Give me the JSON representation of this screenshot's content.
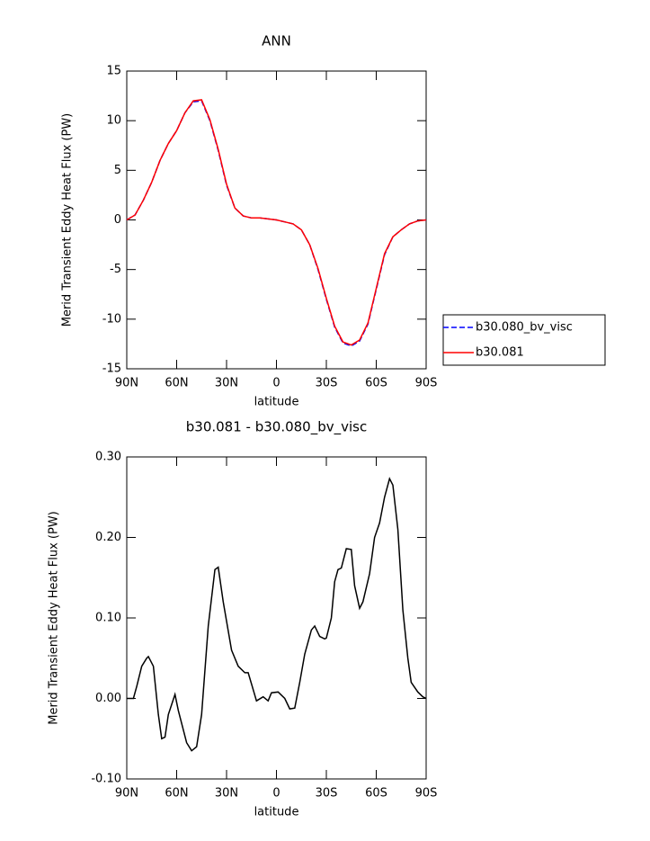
{
  "chart_data": [
    {
      "type": "line",
      "title": "ANN",
      "x_label": "latitude",
      "y_label": "Merid Transient Eddy Heat Flux (PW)",
      "x": [
        90,
        85,
        80,
        75,
        70,
        65,
        60,
        55,
        50,
        45,
        40,
        35,
        30,
        25,
        20,
        15,
        10,
        5,
        0,
        -5,
        -10,
        -15,
        -20,
        -25,
        -30,
        -35,
        -40,
        -45,
        -50,
        -55,
        -60,
        -65,
        -70,
        -75,
        -80,
        -85,
        -90
      ],
      "series": [
        {
          "name": "b30.080_bv_visc",
          "color": "#0000ff",
          "dashed": true,
          "values": [
            0,
            0.5,
            2,
            3.8,
            6,
            7.7,
            9,
            10.8,
            11.9,
            12,
            10,
            7,
            3.5,
            1.2,
            0.4,
            0.2,
            0.2,
            0.1,
            0,
            -0.2,
            -0.4,
            -1,
            -2.5,
            -5,
            -8,
            -10.8,
            -12.4,
            -12.7,
            -12.2,
            -10.5,
            -7,
            -3.5,
            -1.7,
            -1,
            -0.4,
            -0.1,
            0
          ]
        },
        {
          "name": "b30.081",
          "color": "#ff0000",
          "dashed": false,
          "values": [
            0,
            0.5,
            2,
            3.8,
            6,
            7.7,
            9,
            10.8,
            12,
            12.1,
            10.1,
            7.1,
            3.6,
            1.2,
            0.4,
            0.2,
            0.2,
            0.1,
            0,
            -0.2,
            -0.4,
            -1,
            -2.5,
            -4.9,
            -7.9,
            -10.7,
            -12.3,
            -12.6,
            -12.1,
            -10.4,
            -6.9,
            -3.4,
            -1.7,
            -1,
            -0.4,
            -0.1,
            0
          ]
        }
      ],
      "xlim": [
        90,
        -90
      ],
      "xticks": [
        {
          "value": 90,
          "label": "90N"
        },
        {
          "value": 60,
          "label": "60N"
        },
        {
          "value": 30,
          "label": "30N"
        },
        0,
        {
          "value": -30,
          "label": "30S"
        },
        {
          "value": -60,
          "label": "60S"
        },
        {
          "value": -90,
          "label": "90S"
        }
      ],
      "ylim": [
        -15,
        15
      ],
      "yticks": [
        -15,
        -10,
        -5,
        0,
        5,
        10,
        15
      ],
      "legend": "right"
    },
    {
      "type": "line",
      "title": "b30.081 - b30.080_bv_visc",
      "x_label": "latitude",
      "y_label": "Merid Transient Eddy Heat Flux (PW)",
      "x": [
        90,
        86,
        84,
        81,
        78,
        77,
        74,
        71,
        69,
        67,
        65,
        61,
        59,
        54,
        51,
        48,
        45,
        41,
        37,
        35,
        32,
        27,
        23,
        19,
        17,
        12,
        8,
        5,
        3,
        -1,
        -5,
        -8,
        -11,
        -14,
        -17,
        -21,
        -23,
        -26,
        -29,
        -30,
        -33,
        -35,
        -37,
        -39,
        -42,
        -45,
        -47,
        -50,
        -52,
        -56,
        -59,
        -62,
        -65,
        -68,
        -70,
        -73,
        -76,
        -79,
        -81,
        -85,
        -88,
        -90
      ],
      "color": "#000000",
      "values": [
        0,
        0,
        0.015,
        0.04,
        0.05,
        0.052,
        0.04,
        -0.02,
        -0.05,
        -0.048,
        -0.02,
        0.005,
        -0.015,
        -0.055,
        -0.065,
        -0.06,
        -0.02,
        0.09,
        0.16,
        0.163,
        0.12,
        0.06,
        0.04,
        0.032,
        0.032,
        -0.003,
        0.002,
        -0.003,
        0.007,
        0.008,
        0,
        -0.013,
        -0.012,
        0.02,
        0.055,
        0.085,
        0.09,
        0.077,
        0.074,
        0.075,
        0.1,
        0.145,
        0.16,
        0.162,
        0.186,
        0.185,
        0.14,
        0.112,
        0.12,
        0.155,
        0.2,
        0.218,
        0.25,
        0.273,
        0.265,
        0.21,
        0.11,
        0.05,
        0.02,
        0.008,
        0.002,
        0
      ],
      "xlim": [
        90,
        -90
      ],
      "xticks": [
        {
          "value": 90,
          "label": "90N"
        },
        {
          "value": 60,
          "label": "60N"
        },
        {
          "value": 30,
          "label": "30N"
        },
        0,
        {
          "value": -30,
          "label": "30S"
        },
        {
          "value": -60,
          "label": "60S"
        },
        {
          "value": -90,
          "label": "90S"
        }
      ],
      "ylim": [
        -0.1,
        0.3
      ],
      "yticks": [
        {
          "value": -0.1,
          "label": "-0.10"
        },
        {
          "value": 0,
          "label": "0.00"
        },
        {
          "value": 0.1,
          "label": "0.10"
        },
        {
          "value": 0.2,
          "label": "0.20"
        },
        {
          "value": 0.3,
          "label": "0.30"
        }
      ]
    }
  ]
}
